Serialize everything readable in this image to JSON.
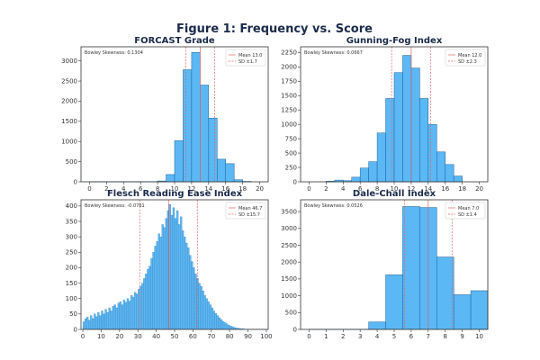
{
  "figure": {
    "title": "Figure 1: Frequency vs. Score"
  },
  "colors": {
    "bar_fill": "#5bb8f5",
    "bar_edge": "#1d5f93",
    "mean_line": "#e06060",
    "sd_line": "#e06060",
    "axis": "#333333"
  },
  "chart_data": [
    {
      "type": "bar",
      "title": "FORCAST Grade",
      "annotation": "Bowley Skewness: 0.1304",
      "legend": {
        "placement": "top-right",
        "mean_label": "Mean 13.0",
        "sd_label": "SD ±1.7"
      },
      "xlim": [
        -1,
        21
      ],
      "ylim": [
        0,
        3350
      ],
      "xticks": [
        0,
        2,
        4,
        6,
        8,
        10,
        12,
        14,
        16,
        18,
        20
      ],
      "yticks": [
        0,
        500,
        1000,
        1500,
        2000,
        2500,
        3000
      ],
      "bin_width": 1,
      "bins": [
        {
          "x0": 0,
          "y": 5
        },
        {
          "x0": 1,
          "y": 5
        },
        {
          "x0": 2,
          "y": 5
        },
        {
          "x0": 3,
          "y": 5
        },
        {
          "x0": 4,
          "y": 5
        },
        {
          "x0": 5,
          "y": 5
        },
        {
          "x0": 6,
          "y": 5
        },
        {
          "x0": 7,
          "y": 5
        },
        {
          "x0": 8,
          "y": 20
        },
        {
          "x0": 9,
          "y": 180
        },
        {
          "x0": 10,
          "y": 1020
        },
        {
          "x0": 11,
          "y": 2780
        },
        {
          "x0": 12,
          "y": 3210
        },
        {
          "x0": 13,
          "y": 2400
        },
        {
          "x0": 14,
          "y": 1580
        },
        {
          "x0": 15,
          "y": 560
        },
        {
          "x0": 16,
          "y": 450
        },
        {
          "x0": 17,
          "y": 50
        },
        {
          "x0": 18,
          "y": 10
        }
      ],
      "mean": 13.0,
      "sd_lines": [
        11.3,
        14.7
      ]
    },
    {
      "type": "bar",
      "title": "Gunning-Fog Index",
      "annotation": "Bowley Skewness: 0.0667",
      "legend": {
        "placement": "top-right",
        "mean_label": "Mean 12.0",
        "sd_label": "SD ±2.3"
      },
      "xlim": [
        -1,
        21
      ],
      "ylim": [
        0,
        2350
      ],
      "xticks": [
        0,
        2,
        4,
        6,
        8,
        10,
        12,
        14,
        16,
        18,
        20
      ],
      "yticks": [
        0,
        250,
        500,
        750,
        1000,
        1250,
        1500,
        1750,
        2000,
        2250
      ],
      "bin_width": 1,
      "bins": [
        {
          "x0": 2,
          "y": 10
        },
        {
          "x0": 3,
          "y": 30
        },
        {
          "x0": 4,
          "y": 20
        },
        {
          "x0": 5,
          "y": 80
        },
        {
          "x0": 6,
          "y": 240
        },
        {
          "x0": 7,
          "y": 350
        },
        {
          "x0": 8,
          "y": 850
        },
        {
          "x0": 9,
          "y": 1450
        },
        {
          "x0": 10,
          "y": 1900
        },
        {
          "x0": 11,
          "y": 2200
        },
        {
          "x0": 12,
          "y": 1980
        },
        {
          "x0": 13,
          "y": 1450
        },
        {
          "x0": 14,
          "y": 1000
        },
        {
          "x0": 15,
          "y": 520
        },
        {
          "x0": 16,
          "y": 300
        },
        {
          "x0": 17,
          "y": 100
        }
      ],
      "mean": 12.0,
      "sd_lines": [
        9.7,
        14.3
      ]
    },
    {
      "type": "bar",
      "title": "Flesch Reading Ease Index",
      "annotation": "Bowley Skewness: -0.0761",
      "legend": {
        "placement": "top-right",
        "mean_label": "Mean 46.7",
        "sd_label": "SD ±15.7"
      },
      "xlim": [
        -1,
        101
      ],
      "ylim": [
        0,
        420
      ],
      "xticks": [
        0,
        10,
        20,
        30,
        40,
        50,
        60,
        70,
        80,
        90,
        100
      ],
      "yticks": [
        0,
        50,
        100,
        150,
        200,
        250,
        300,
        350,
        400
      ],
      "bin_width": 1,
      "bins": [
        {
          "x0": 0,
          "y": 25
        },
        {
          "x0": 1,
          "y": 35
        },
        {
          "x0": 2,
          "y": 40
        },
        {
          "x0": 3,
          "y": 30
        },
        {
          "x0": 4,
          "y": 45
        },
        {
          "x0": 5,
          "y": 35
        },
        {
          "x0": 6,
          "y": 50
        },
        {
          "x0": 7,
          "y": 42
        },
        {
          "x0": 8,
          "y": 55
        },
        {
          "x0": 9,
          "y": 45
        },
        {
          "x0": 10,
          "y": 60
        },
        {
          "x0": 11,
          "y": 50
        },
        {
          "x0": 12,
          "y": 65
        },
        {
          "x0": 13,
          "y": 55
        },
        {
          "x0": 14,
          "y": 70
        },
        {
          "x0": 15,
          "y": 60
        },
        {
          "x0": 16,
          "y": 75
        },
        {
          "x0": 17,
          "y": 80
        },
        {
          "x0": 18,
          "y": 70
        },
        {
          "x0": 19,
          "y": 85
        },
        {
          "x0": 20,
          "y": 90
        },
        {
          "x0": 21,
          "y": 80
        },
        {
          "x0": 22,
          "y": 95
        },
        {
          "x0": 23,
          "y": 88
        },
        {
          "x0": 24,
          "y": 100
        },
        {
          "x0": 25,
          "y": 92
        },
        {
          "x0": 26,
          "y": 110
        },
        {
          "x0": 27,
          "y": 105
        },
        {
          "x0": 28,
          "y": 120
        },
        {
          "x0": 29,
          "y": 115
        },
        {
          "x0": 30,
          "y": 130
        },
        {
          "x0": 31,
          "y": 140
        },
        {
          "x0": 32,
          "y": 150
        },
        {
          "x0": 33,
          "y": 165
        },
        {
          "x0": 34,
          "y": 180
        },
        {
          "x0": 35,
          "y": 195
        },
        {
          "x0": 36,
          "y": 205
        },
        {
          "x0": 37,
          "y": 230
        },
        {
          "x0": 38,
          "y": 250
        },
        {
          "x0": 39,
          "y": 270
        },
        {
          "x0": 40,
          "y": 285
        },
        {
          "x0": 41,
          "y": 310
        },
        {
          "x0": 42,
          "y": 300
        },
        {
          "x0": 43,
          "y": 340
        },
        {
          "x0": 44,
          "y": 330
        },
        {
          "x0": 45,
          "y": 360
        },
        {
          "x0": 46,
          "y": 385
        },
        {
          "x0": 47,
          "y": 405
        },
        {
          "x0": 48,
          "y": 370
        },
        {
          "x0": 49,
          "y": 395
        },
        {
          "x0": 50,
          "y": 360
        },
        {
          "x0": 51,
          "y": 385
        },
        {
          "x0": 52,
          "y": 340
        },
        {
          "x0": 53,
          "y": 365
        },
        {
          "x0": 54,
          "y": 320
        },
        {
          "x0": 55,
          "y": 300
        },
        {
          "x0": 56,
          "y": 280
        },
        {
          "x0": 57,
          "y": 265
        },
        {
          "x0": 58,
          "y": 240
        },
        {
          "x0": 59,
          "y": 220
        },
        {
          "x0": 60,
          "y": 200
        },
        {
          "x0": 61,
          "y": 180
        },
        {
          "x0": 62,
          "y": 165
        },
        {
          "x0": 63,
          "y": 150
        },
        {
          "x0": 64,
          "y": 140
        },
        {
          "x0": 65,
          "y": 125
        },
        {
          "x0": 66,
          "y": 110
        },
        {
          "x0": 67,
          "y": 100
        },
        {
          "x0": 68,
          "y": 90
        },
        {
          "x0": 69,
          "y": 80
        },
        {
          "x0": 70,
          "y": 70
        },
        {
          "x0": 71,
          "y": 60
        },
        {
          "x0": 72,
          "y": 52
        },
        {
          "x0": 73,
          "y": 45
        },
        {
          "x0": 74,
          "y": 38
        },
        {
          "x0": 75,
          "y": 32
        },
        {
          "x0": 76,
          "y": 26
        },
        {
          "x0": 77,
          "y": 22
        },
        {
          "x0": 78,
          "y": 18
        },
        {
          "x0": 79,
          "y": 14
        },
        {
          "x0": 80,
          "y": 11
        },
        {
          "x0": 81,
          "y": 9
        },
        {
          "x0": 82,
          "y": 7
        },
        {
          "x0": 83,
          "y": 5
        },
        {
          "x0": 84,
          "y": 4
        },
        {
          "x0": 85,
          "y": 3
        },
        {
          "x0": 86,
          "y": 2
        },
        {
          "x0": 87,
          "y": 2
        },
        {
          "x0": 88,
          "y": 1
        },
        {
          "x0": 89,
          "y": 1
        },
        {
          "x0": 90,
          "y": 1
        },
        {
          "x0": 91,
          "y": 1
        },
        {
          "x0": 92,
          "y": 1
        },
        {
          "x0": 93,
          "y": 1
        },
        {
          "x0": 94,
          "y": 1
        },
        {
          "x0": 95,
          "y": 1
        },
        {
          "x0": 96,
          "y": 1
        },
        {
          "x0": 97,
          "y": 1
        },
        {
          "x0": 98,
          "y": 1
        }
      ],
      "mean": 46.7,
      "sd_lines": [
        31.0,
        62.4
      ]
    },
    {
      "type": "bar",
      "title": "Dale-Chall Index",
      "annotation": "Bowley Skewness: 0.0526",
      "legend": {
        "placement": "top-right",
        "mean_label": "Mean 7.0",
        "sd_label": "SD ±1.4"
      },
      "xlim": [
        -0.5,
        10.5
      ],
      "ylim": [
        0,
        3850
      ],
      "xticks": [
        0,
        1,
        2,
        3,
        4,
        5,
        6,
        7,
        8,
        9,
        10
      ],
      "yticks": [
        0,
        500,
        1000,
        1500,
        2000,
        2500,
        3000,
        3500
      ],
      "bin_width": 1,
      "bins": [
        {
          "x0": 0,
          "y": 5
        },
        {
          "x0": 1,
          "y": 5
        },
        {
          "x0": 2,
          "y": 5
        },
        {
          "x0": 3,
          "y": 5
        },
        {
          "x0": 3.5,
          "y": 220
        },
        {
          "x0": 4.5,
          "y": 1620
        },
        {
          "x0": 5.5,
          "y": 3650
        },
        {
          "x0": 6.5,
          "y": 3620
        },
        {
          "x0": 7.5,
          "y": 2150
        },
        {
          "x0": 8.5,
          "y": 1030
        },
        {
          "x0": 9.5,
          "y": 1150
        }
      ],
      "mean": 7.0,
      "sd_lines": [
        5.6,
        8.4
      ]
    }
  ]
}
